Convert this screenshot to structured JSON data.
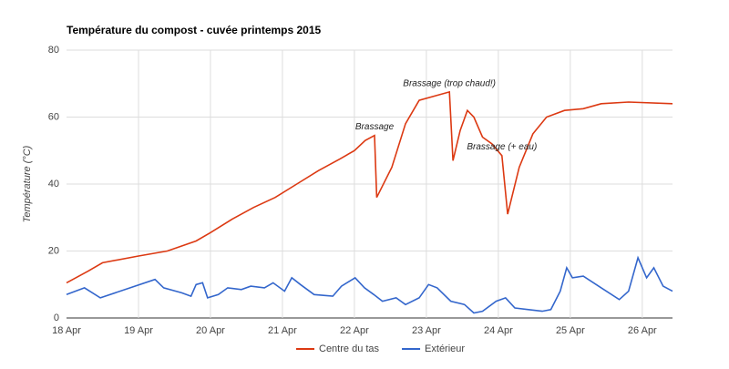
{
  "chart_data": {
    "type": "line",
    "title": "Température du compost - cuvée printemps 2015",
    "y_label": "Température (°C)",
    "xlim": [
      18,
      26.42
    ],
    "xticks": [
      {
        "value": 18,
        "label": "18 Apr"
      },
      {
        "value": 19,
        "label": "19 Apr"
      },
      {
        "value": 20,
        "label": "20 Apr"
      },
      {
        "value": 21,
        "label": "21 Apr"
      },
      {
        "value": 22,
        "label": "22 Apr"
      },
      {
        "value": 23,
        "label": "23 Apr"
      },
      {
        "value": 24,
        "label": "24 Apr"
      },
      {
        "value": 25,
        "label": "25 Apr"
      },
      {
        "value": 26,
        "label": "26 Apr"
      }
    ],
    "ylim": [
      0,
      80
    ],
    "yticks": [
      0,
      20,
      40,
      60,
      80
    ],
    "grid": true,
    "legend": "bottom",
    "series": [
      {
        "name": "Centre du tas",
        "color": "#dc3912",
        "x": [
          18,
          18.3,
          18.5,
          19,
          19.4,
          19.8,
          20,
          20.3,
          20.6,
          20.9,
          21.2,
          21.5,
          21.8,
          22,
          22.15,
          22.28,
          22.31,
          22.52,
          22.71,
          22.9,
          23.15,
          23.32,
          23.37,
          23.47,
          23.57,
          23.66,
          23.78,
          23.91,
          24.05,
          24.13,
          24.29,
          24.48,
          24.67,
          24.92,
          25.18,
          25.43,
          25.81,
          26.42
        ],
        "values": [
          10.5,
          14,
          16.5,
          18.5,
          20,
          23,
          25.5,
          29.5,
          33,
          36,
          40,
          44,
          47.5,
          50,
          53,
          54.5,
          36,
          45,
          58,
          65,
          66.5,
          67.5,
          47,
          56,
          62,
          60,
          54,
          52,
          48.5,
          31,
          45,
          55,
          60,
          62,
          62.5,
          64,
          64.5,
          64
        ]
      },
      {
        "name": "Extérieur",
        "color": "#3366cc",
        "x": [
          18,
          18.25,
          18.47,
          19.23,
          19.35,
          19.6,
          19.73,
          19.8,
          19.89,
          19.96,
          20.11,
          20.24,
          20.43,
          20.56,
          20.75,
          20.87,
          21.03,
          21.13,
          21.25,
          21.44,
          21.7,
          21.82,
          22.01,
          22.14,
          22.27,
          22.39,
          22.58,
          22.71,
          22.9,
          23.03,
          23.15,
          23.34,
          23.53,
          23.66,
          23.78,
          23.97,
          24.1,
          24.23,
          24.42,
          24.61,
          24.73,
          24.86,
          24.95,
          25.03,
          25.18,
          25.43,
          25.68,
          25.81,
          25.94,
          26.06,
          26.16,
          26.29,
          26.42
        ],
        "values": [
          7,
          9,
          6,
          11.5,
          9,
          7.5,
          6.5,
          10,
          10.5,
          6,
          7,
          9,
          8.5,
          9.5,
          9,
          10.5,
          8,
          12,
          10,
          7,
          6.5,
          9.5,
          12,
          9,
          7,
          5,
          6,
          4,
          6,
          10,
          9,
          5,
          4,
          1.5,
          2,
          5,
          6,
          3,
          2.5,
          2,
          2.5,
          8,
          15,
          12,
          12.5,
          9,
          5.5,
          8,
          18,
          12,
          15,
          9.5,
          8
        ]
      }
    ],
    "annotations": [
      {
        "text": "Brassage",
        "x": 22.28,
        "y": 57
      },
      {
        "text": "Brassage (trop chaud!)",
        "x": 23.32,
        "y": 70
      },
      {
        "text": "Brassage (+ eau)",
        "x": 24.05,
        "y": 51
      }
    ]
  }
}
